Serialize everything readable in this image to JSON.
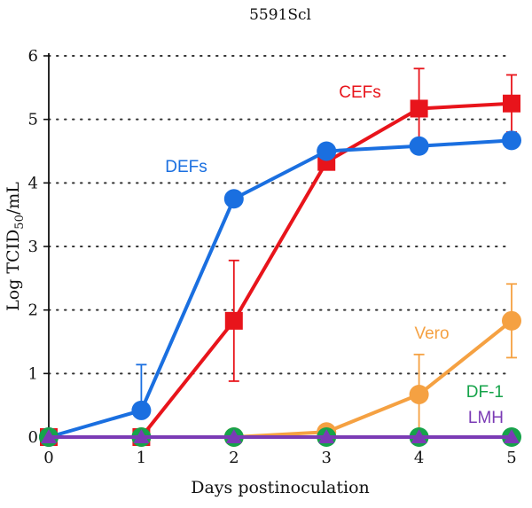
{
  "chart_data": {
    "type": "line",
    "title": "5591Scl",
    "xlabel": "Days postinoculation",
    "ylabel_main": "Log TCID",
    "ylabel_sub": "50",
    "ylabel_tail": "/mL",
    "x": [
      0,
      1,
      2,
      3,
      4,
      5
    ],
    "xlim": [
      0,
      5
    ],
    "ylim": [
      0,
      6
    ],
    "xticks": [
      "0",
      "1",
      "2",
      "3",
      "4",
      "5"
    ],
    "yticks": [
      "0",
      "1",
      "2",
      "3",
      "4",
      "5",
      "6"
    ],
    "grid": "horizontal dotted",
    "series": [
      {
        "name": "Vero",
        "color": "#F5A142",
        "marker": "circle",
        "values": [
          0,
          0,
          0,
          0.08,
          0.67,
          1.83
        ],
        "err": [
          0,
          0,
          0,
          0,
          0.63,
          0.58
        ]
      },
      {
        "name": "CEFs",
        "color": "#E8141B",
        "marker": "square",
        "values": [
          0,
          0,
          1.83,
          4.33,
          5.17,
          5.25
        ],
        "err": [
          0,
          0,
          0.95,
          0,
          0.63,
          0.45
        ]
      },
      {
        "name": "DEFs",
        "color": "#1A6FE0",
        "marker": "circle",
        "values": [
          0,
          0.42,
          3.75,
          4.5,
          4.58,
          4.67
        ],
        "err": [
          0,
          0.72,
          0,
          0,
          0,
          0
        ]
      },
      {
        "name": "DF-1",
        "color": "#16A34A",
        "marker": "circle",
        "values": [
          0,
          0,
          0,
          0,
          0,
          0
        ],
        "err": [
          0,
          0,
          0,
          0,
          0,
          0
        ]
      },
      {
        "name": "LMH",
        "color": "#7B3BB5",
        "marker": "triangle",
        "values": [
          0,
          0,
          0,
          0,
          0,
          0
        ],
        "err": [
          0,
          0,
          0,
          0,
          0,
          0
        ]
      }
    ]
  }
}
